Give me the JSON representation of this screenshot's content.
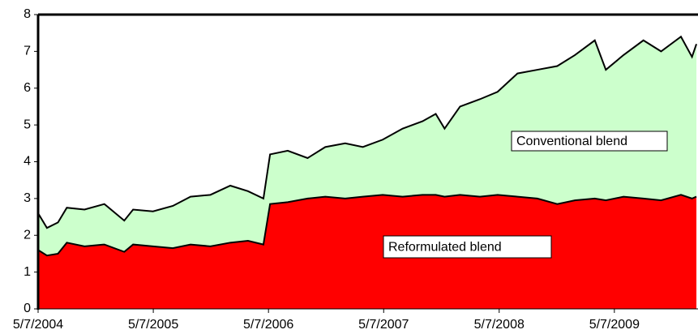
{
  "chart_data": {
    "type": "stacked-area",
    "x": [
      "5/7/2004",
      "6/4/2004",
      "7/9/2004",
      "8/6/2004",
      "10/1/2004",
      "12/3/2004",
      "2/4/2005",
      "3/4/2005",
      "5/6/2005",
      "7/8/2005",
      "9/2/2005",
      "11/4/2005",
      "1/6/2006",
      "3/3/2006",
      "4/21/2006",
      "5/12/2006",
      "7/7/2006",
      "9/8/2006",
      "11/3/2006",
      "1/5/2007",
      "3/2/2007",
      "5/4/2007",
      "7/6/2007",
      "9/7/2007",
      "10/19/2007",
      "11/16/2007",
      "1/4/2008",
      "3/7/2008",
      "5/2/2008",
      "7/4/2008",
      "9/5/2008",
      "11/7/2008",
      "1/2/2009",
      "3/6/2009",
      "4/10/2009",
      "6/5/2009",
      "8/7/2009",
      "10/2/2009",
      "12/4/2009",
      "1/8/2010",
      "1/22/2010"
    ],
    "series": [
      {
        "name": "Reformulated blend",
        "color": "#ff0000",
        "values": [
          1.6,
          1.45,
          1.5,
          1.8,
          1.7,
          1.75,
          1.55,
          1.75,
          1.7,
          1.65,
          1.75,
          1.7,
          1.8,
          1.85,
          1.75,
          2.85,
          2.9,
          3.0,
          3.05,
          3.0,
          3.05,
          3.1,
          3.05,
          3.1,
          3.1,
          3.05,
          3.1,
          3.05,
          3.1,
          3.05,
          3.0,
          2.85,
          2.95,
          3.0,
          2.95,
          3.05,
          3.0,
          2.95,
          3.1,
          3.0,
          3.05
        ]
      },
      {
        "name": "Conventional blend",
        "color": "#ccffcc",
        "values": [
          1.0,
          0.75,
          0.85,
          0.95,
          1.0,
          1.1,
          0.85,
          0.95,
          0.95,
          1.15,
          1.3,
          1.4,
          1.55,
          1.35,
          1.25,
          1.35,
          1.4,
          1.1,
          1.35,
          1.5,
          1.35,
          1.5,
          1.85,
          2.0,
          2.2,
          1.85,
          2.4,
          2.65,
          2.8,
          3.35,
          3.5,
          3.75,
          3.95,
          4.3,
          3.55,
          3.85,
          4.3,
          4.05,
          4.3,
          3.85,
          4.15
        ]
      }
    ],
    "xlim": [
      "5/7/2004",
      "1/27/2010"
    ],
    "xticks": [
      "5/7/2004",
      "5/7/2005",
      "5/7/2006",
      "5/7/2007",
      "5/7/2008",
      "5/7/2009"
    ],
    "ylim": [
      0,
      8
    ],
    "yticks": [
      0,
      1,
      2,
      3,
      4,
      5,
      6,
      7,
      8
    ],
    "line_color": "#000000",
    "grid": false
  }
}
